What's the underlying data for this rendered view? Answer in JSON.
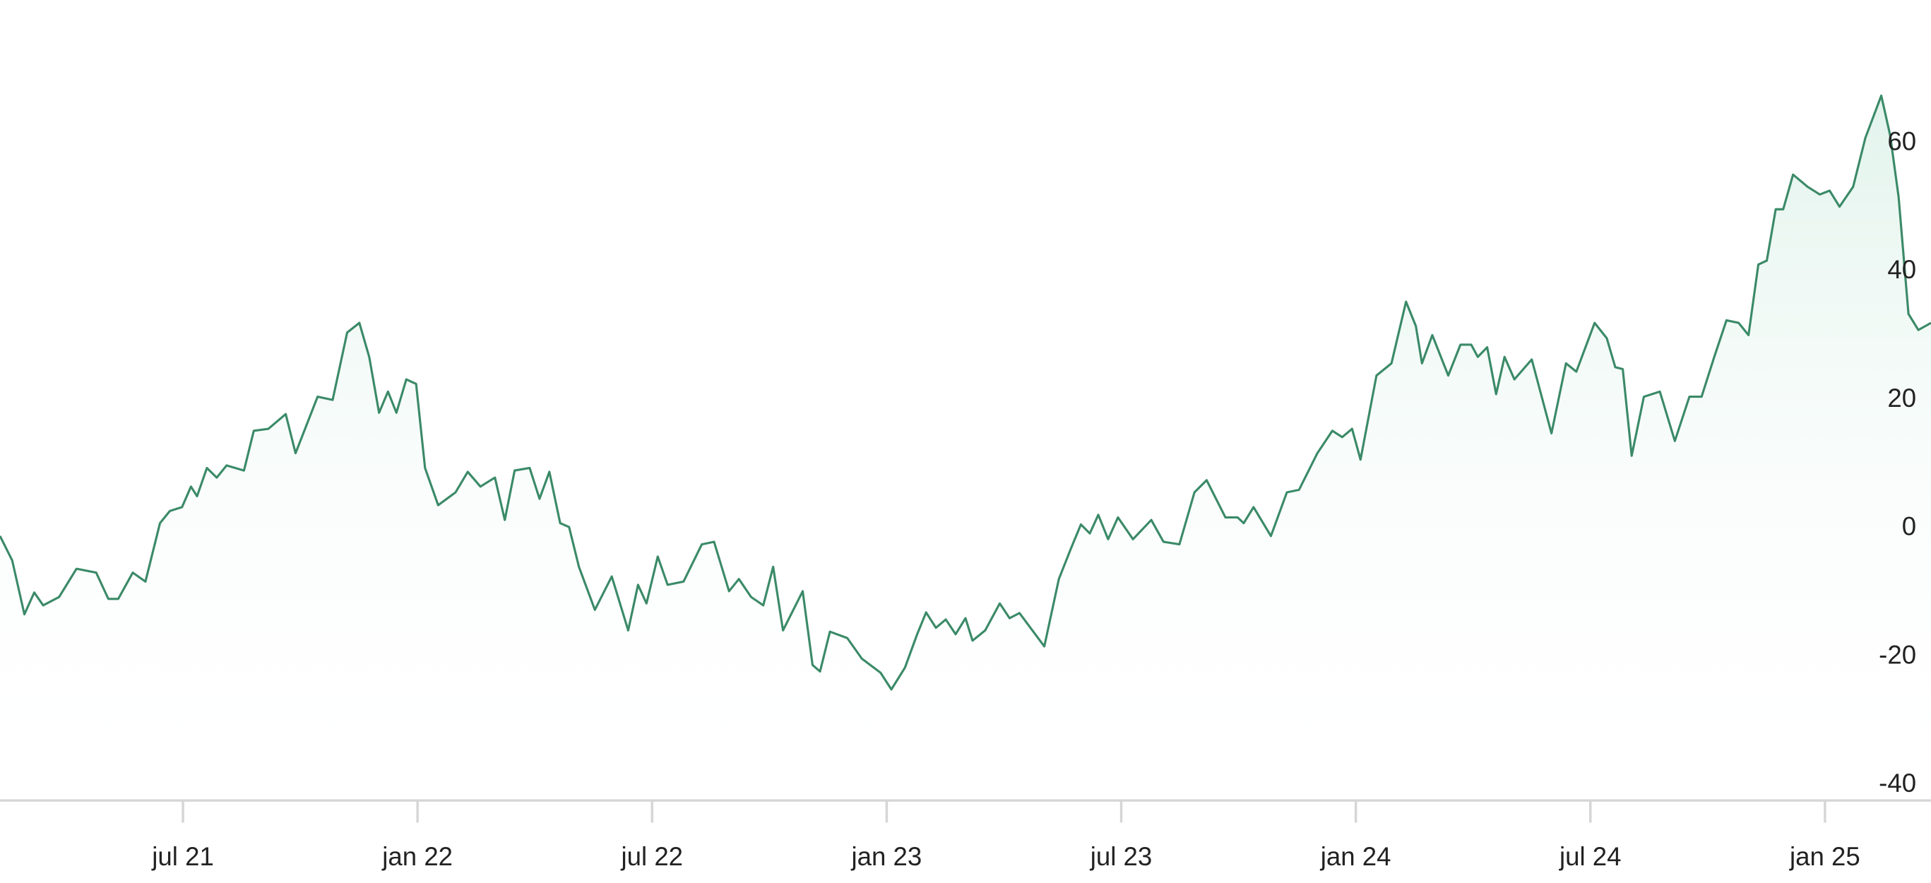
{
  "chart_data": {
    "type": "area",
    "x": [
      2021.11,
      2021.136,
      2021.162,
      2021.183,
      2021.202,
      2021.236,
      2021.273,
      2021.315,
      2021.341,
      2021.362,
      2021.393,
      2021.42,
      2021.451,
      2021.472,
      2021.498,
      2021.517,
      2021.53,
      2021.551,
      2021.572,
      2021.593,
      2021.63,
      2021.651,
      2021.682,
      2021.719,
      2021.74,
      2021.787,
      2021.819,
      2021.85,
      2021.876,
      2021.897,
      2021.918,
      2021.937,
      2021.955,
      2021.976,
      2021.997,
      2022.016,
      2022.044,
      2022.081,
      2022.107,
      2022.134,
      2022.165,
      2022.186,
      2022.207,
      2022.239,
      2022.26,
      2022.281,
      2022.304,
      2022.323,
      2022.344,
      2022.378,
      2022.414,
      2022.449,
      2022.47,
      2022.488,
      2022.512,
      2022.533,
      2022.567,
      2022.606,
      2022.632,
      2022.664,
      2022.685,
      2022.711,
      2022.737,
      2022.758,
      2022.779,
      2022.821,
      2022.842,
      2022.858,
      2022.879,
      2022.916,
      2022.947,
      2022.987,
      2023.01,
      2023.039,
      2023.065,
      2023.084,
      2023.105,
      2023.126,
      2023.147,
      2023.168,
      2023.183,
      2023.21,
      2023.241,
      2023.262,
      2023.283,
      2023.336,
      2023.367,
      2023.393,
      2023.414,
      2023.433,
      2023.451,
      2023.472,
      2023.493,
      2023.525,
      2023.564,
      2023.59,
      2023.624,
      2023.656,
      2023.682,
      2023.722,
      2023.748,
      2023.761,
      2023.782,
      2023.819,
      2023.853,
      2023.879,
      2023.918,
      2023.95,
      2023.971,
      2023.992,
      2024.01,
      2024.044,
      2024.076,
      2024.107,
      2024.128,
      2024.141,
      2024.163,
      2024.197,
      2024.223,
      2024.246,
      2024.26,
      2024.28,
      2024.299,
      2024.317,
      2024.338,
      2024.375,
      2024.417,
      2024.448,
      2024.47,
      2024.509,
      2024.535,
      2024.553,
      2024.569,
      2024.588,
      2024.614,
      2024.648,
      2024.68,
      2024.711,
      2024.737,
      2024.764,
      2024.79,
      2024.816,
      2024.837,
      2024.858,
      2024.876,
      2024.895,
      2024.911,
      2024.932,
      2024.963,
      2024.989,
      2025.01,
      2025.031,
      2025.06,
      2025.086,
      2025.12,
      2025.139,
      2025.157,
      2025.178,
      2025.199,
      2025.226
    ],
    "values": [
      -1.2,
      -5,
      -13.4,
      -10,
      -12,
      -10.7,
      -6.3,
      -6.9,
      -11,
      -11,
      -6.9,
      -8.3,
      0.8,
      2.7,
      3.3,
      6.5,
      5,
      9.4,
      7.9,
      9.8,
      9,
      15.2,
      15.5,
      17.8,
      11.7,
      20.5,
      20,
      30.5,
      32,
      26.7,
      18,
      21.3,
      18,
      23.2,
      22.5,
      9.4,
      3.6,
      5.6,
      8.8,
      6.5,
      7.9,
      1.3,
      9,
      9.4,
      4.6,
      8.8,
      0.8,
      0.2,
      -6,
      -12.7,
      -7.5,
      -15.9,
      -8.8,
      -11.7,
      -4.4,
      -8.8,
      -8.3,
      -2.5,
      -2.1,
      -9.8,
      -7.9,
      -10.7,
      -12,
      -6,
      -15.9,
      -9.8,
      -21.3,
      -22.3,
      -16.1,
      -17.1,
      -20.3,
      -22.5,
      -25.1,
      -21.7,
      -16.5,
      -13.1,
      -15.5,
      -14.2,
      -16.5,
      -14,
      -17.5,
      -15.9,
      -11.7,
      -14,
      -13.2,
      -18.4,
      -7.9,
      -3.1,
      0.6,
      -0.8,
      2.1,
      -1.7,
      1.7,
      -1.7,
      1.3,
      -2.1,
      -2.5,
      5.6,
      7.5,
      1.7,
      1.7,
      0.8,
      3.3,
      -1.2,
      5.6,
      6,
      11.7,
      15.2,
      14.2,
      15.5,
      10.7,
      23.8,
      25.7,
      35.3,
      31.5,
      25.7,
      30.1,
      23.8,
      28.6,
      28.6,
      26.7,
      28.2,
      20.9,
      26.7,
      23.2,
      26.3,
      14.8,
      25.7,
      24.4,
      32,
      29.6,
      25.1,
      24.8,
      11.3,
      20.5,
      21.3,
      13.6,
      20.5,
      20.5,
      26.7,
      32.4,
      32,
      30.1,
      41.1,
      41.7,
      49.7,
      49.7,
      55.1,
      53.2,
      52,
      52.6,
      50.1,
      53.2,
      60.8,
      67.4,
      61.2,
      51.6,
      33.4,
      30.9,
      32
    ],
    "color": "#3b8a68",
    "xlim": [
      2021.11,
      2025.226
    ],
    "xticks": [
      {
        "value": 2021.5,
        "label": "jul 21"
      },
      {
        "value": 2022.0,
        "label": "jan 22"
      },
      {
        "value": 2022.5,
        "label": "jul 22"
      },
      {
        "value": 2023.0,
        "label": "jan 23"
      },
      {
        "value": 2023.5,
        "label": "jul 23"
      },
      {
        "value": 2024.0,
        "label": "jan 24"
      },
      {
        "value": 2024.5,
        "label": "jul 24"
      },
      {
        "value": 2025.0,
        "label": "jan 25"
      }
    ],
    "ylim": [
      -42.4,
      82.3
    ],
    "yticks": [
      -40,
      -20,
      0,
      20,
      40,
      60
    ],
    "grid": false
  }
}
